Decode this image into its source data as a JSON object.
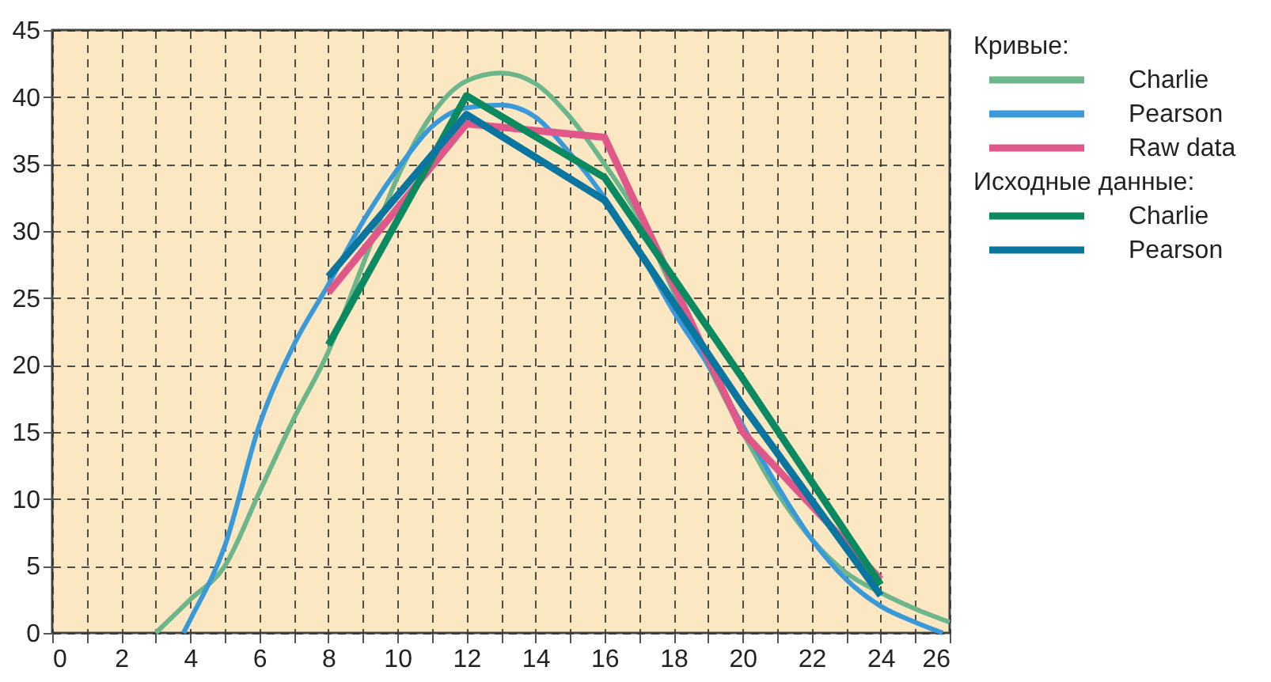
{
  "chart_data": {
    "type": "line",
    "legend_title": "Кривые:",
    "annotations": [
      "Исходные данные:"
    ],
    "xlim": [
      0,
      26
    ],
    "ylim": [
      0,
      45
    ],
    "xticks": [
      0,
      {
        "value": 1,
        "label": null
      },
      2,
      {
        "value": 3,
        "label": null
      },
      4,
      {
        "value": 5,
        "label": null
      },
      6,
      {
        "value": 7,
        "label": null
      },
      8,
      {
        "value": 9,
        "label": null
      },
      10,
      {
        "value": 11,
        "label": null
      },
      12,
      {
        "value": 13,
        "label": null
      },
      14,
      {
        "value": 15,
        "label": null
      },
      16,
      {
        "value": 17,
        "label": null
      },
      18,
      {
        "value": 19,
        "label": null
      },
      20,
      {
        "value": 21,
        "label": null
      },
      22,
      {
        "value": 23,
        "label": null
      },
      24,
      {
        "value": 25,
        "label": null
      },
      26
    ],
    "yticks": [
      0,
      5,
      10,
      15,
      20,
      25,
      30,
      35,
      40,
      45
    ],
    "grid": true,
    "line_style": "solid",
    "legend": "right",
    "series": [
      {
        "name": "Charlie",
        "color": "#6db58a",
        "x": [
          3,
          4,
          5,
          6,
          7,
          8,
          9,
          10,
          11,
          12,
          13,
          14,
          15,
          16,
          17,
          18,
          19,
          20,
          21,
          22,
          23,
          24,
          25,
          26
        ],
        "values": [
          0,
          2.5,
          5,
          10.5,
          16,
          21,
          27.5,
          34,
          38.7,
          41.2,
          41.8,
          41,
          38.5,
          35,
          31,
          25.5,
          20,
          15,
          10.5,
          7,
          4.5,
          3,
          1.8,
          0.8
        ]
      },
      {
        "name": "Pearson",
        "color": "#3a9ad9",
        "x": [
          3.8,
          4,
          5,
          6,
          7,
          8,
          9,
          10,
          11,
          12,
          13,
          14,
          15,
          16,
          17,
          18,
          19,
          20,
          21,
          22,
          23,
          24,
          25,
          25.8
        ],
        "values": [
          0,
          1,
          6.5,
          15.5,
          21.5,
          26,
          30.7,
          34.6,
          37.8,
          39.2,
          39.4,
          38.5,
          35.8,
          32.5,
          28.5,
          24,
          20,
          15.5,
          11,
          7,
          4,
          2,
          0.8,
          0
        ]
      },
      {
        "name": "Raw data",
        "color": "#e0578a",
        "x": [
          8,
          12,
          16,
          20,
          24
        ],
        "values": [
          25.4,
          38,
          37,
          15,
          4
        ]
      },
      {
        "name": "Charlie",
        "color": "#0b8a62",
        "x": [
          8,
          12,
          16,
          20,
          24
        ],
        "values": [
          21.5,
          40.1,
          34,
          19,
          3.6
        ]
      },
      {
        "name": "Pearson",
        "color": "#0a759e",
        "x": [
          8,
          12,
          16,
          20,
          24
        ],
        "values": [
          26.6,
          38.7,
          32.3,
          17,
          2.8
        ]
      }
    ]
  }
}
